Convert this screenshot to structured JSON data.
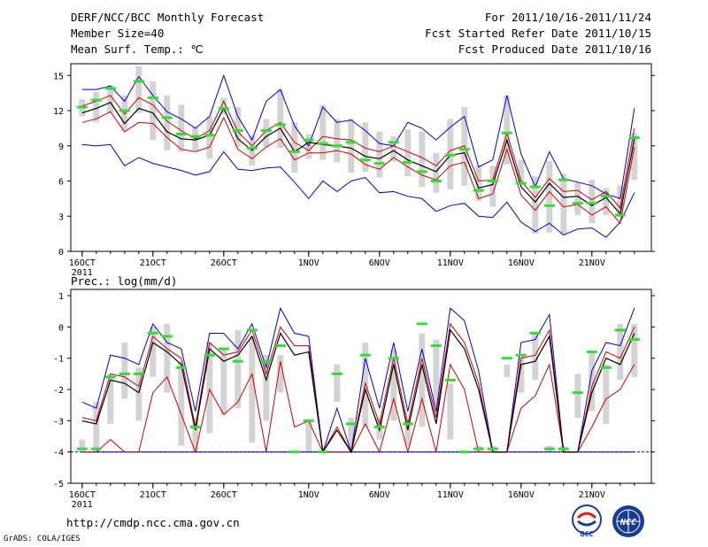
{
  "header": {
    "title": "DERF/NCC/BCC Monthly Forecast",
    "member_size": "Member Size=40",
    "variable": "Mean Surf. Temp.: ℃",
    "period": "For 2011/10/16-2011/11/24",
    "start_date": "Fcst Started Refer Date 2011/10/15",
    "produced_date": "Fcst Produced Date 2011/10/16"
  },
  "footer": {
    "url": "http://cmdp.ncc.cma.gov.cn",
    "grads": "GrADS: COLA/IGES",
    "logo_left_text": "BCC",
    "logo_right_text": "NCC"
  },
  "colors": {
    "member_bar": "#d3d3d3",
    "envelope": "#0000cc",
    "spread": "#cc0000",
    "mean": "#000000",
    "median": "#33dd33",
    "baseline": "#0000cc"
  },
  "chart_data": [
    {
      "name": "temperature",
      "type": "line",
      "title": "Mean Surf. Temp.: ℃",
      "x_tick_labels": [
        "16OCT",
        "21OCT",
        "26OCT",
        "1NOV",
        "6NOV",
        "11NOV",
        "16NOV",
        "21NOV"
      ],
      "x_tick_days": [
        0,
        5,
        10,
        16,
        21,
        26,
        31,
        36
      ],
      "x_year_label": "2011",
      "ylim": [
        0,
        16
      ],
      "y_ticks": [
        0,
        3,
        6,
        9,
        12,
        15
      ],
      "days": 40,
      "series": {
        "max": [
          13.8,
          13.8,
          14.1,
          12.8,
          14.9,
          13.3,
          11.9,
          11.3,
          10.5,
          11.5,
          15.0,
          11.5,
          9.5,
          12.8,
          13.8,
          10.7,
          9.0,
          12.3,
          11.0,
          11.2,
          10.3,
          9.2,
          9.0,
          11.0,
          10.5,
          9.5,
          10.6,
          11.5,
          7.2,
          7.8,
          13.3,
          8.3,
          5.5,
          8.5,
          6.2,
          5.9,
          5.6,
          4.9,
          4.5,
          12.2
        ],
        "hi": [
          12.4,
          12.8,
          13.3,
          11.7,
          13.1,
          12.5,
          11.1,
          10.3,
          9.6,
          10.3,
          12.8,
          10.2,
          9.0,
          10.3,
          11.0,
          9.3,
          8.6,
          9.8,
          9.6,
          9.5,
          8.8,
          8.5,
          9.0,
          8.5,
          8.0,
          7.3,
          8.6,
          9.0,
          6.0,
          6.1,
          10.1,
          6.0,
          4.6,
          6.2,
          5.1,
          5.2,
          4.4,
          5.1,
          3.7,
          10.5
        ],
        "mean": [
          11.8,
          12.2,
          12.7,
          10.9,
          12.2,
          11.8,
          10.2,
          9.6,
          9.5,
          9.9,
          12.2,
          9.6,
          8.6,
          9.8,
          10.5,
          8.5,
          9.3,
          9.1,
          9.0,
          8.8,
          8.1,
          7.9,
          8.6,
          7.8,
          7.3,
          6.8,
          8.2,
          8.4,
          5.4,
          5.7,
          9.5,
          5.5,
          4.2,
          5.8,
          4.6,
          4.7,
          3.9,
          4.6,
          3.2,
          9.6
        ],
        "lo": [
          11.0,
          11.3,
          11.9,
          10.2,
          11.0,
          10.9,
          9.7,
          8.7,
          8.5,
          8.9,
          11.4,
          8.7,
          7.9,
          8.9,
          9.6,
          7.8,
          8.4,
          8.4,
          8.6,
          8.3,
          7.4,
          7.0,
          8.0,
          7.2,
          6.5,
          6.1,
          7.3,
          7.6,
          4.5,
          4.9,
          8.7,
          4.8,
          3.5,
          5.1,
          3.8,
          4.0,
          3.1,
          3.8,
          2.4,
          8.9
        ],
        "min": [
          9.1,
          9.0,
          9.1,
          7.3,
          8.0,
          7.5,
          7.2,
          6.9,
          6.5,
          6.8,
          8.5,
          7.0,
          6.9,
          7.1,
          7.2,
          5.9,
          4.5,
          6.0,
          5.1,
          6.0,
          6.3,
          5.0,
          5.1,
          4.7,
          4.5,
          3.4,
          3.9,
          4.1,
          3.0,
          2.9,
          4.2,
          2.5,
          1.7,
          2.4,
          1.4,
          1.9,
          2.0,
          1.2,
          2.5,
          5.0
        ],
        "median": [
          12.3,
          12.9,
          13.9,
          12.0,
          14.5,
          13.1,
          11.4,
          10.0,
          9.8,
          9.9,
          12.2,
          10.3,
          8.8,
          10.3,
          10.8,
          8.5,
          9.5,
          9.2,
          9.0,
          9.3,
          7.8,
          7.5,
          9.3,
          7.6,
          6.8,
          6.0,
          8.2,
          8.7,
          5.2,
          6.0,
          10.1,
          5.8,
          5.5,
          3.9,
          6.1,
          4.1,
          4.1,
          4.7,
          3.1,
          9.7
        ],
        "bar_top": [
          13.0,
          13.6,
          14.2,
          13.3,
          15.8,
          14.5,
          13.3,
          12.5,
          10.6,
          11.5,
          13.1,
          12.3,
          9.9,
          11.3,
          13.8,
          11.0,
          10.0,
          12.5,
          11.3,
          11.3,
          11.0,
          10.2,
          9.8,
          10.4,
          10.2,
          8.4,
          11.3,
          12.3,
          7.3,
          7.3,
          13.3,
          7.8,
          6.4,
          7.7,
          6.6,
          5.9,
          6.1,
          5.4,
          5.6,
          10.1
        ],
        "bar_bot": [
          11.5,
          11.0,
          11.8,
          10.3,
          11.8,
          9.5,
          8.6,
          8.5,
          8.6,
          7.9,
          11.7,
          8.9,
          7.3,
          8.9,
          8.8,
          6.7,
          7.9,
          7.8,
          7.6,
          6.7,
          6.8,
          6.3,
          7.7,
          6.4,
          5.5,
          5.0,
          5.3,
          5.6,
          4.3,
          3.8,
          7.4,
          5.8,
          1.5,
          1.6,
          1.4,
          3.1,
          2.4,
          3.1,
          2.9,
          6.1
        ]
      }
    },
    {
      "name": "precipitation",
      "type": "line",
      "title": "Prec.: log(mm/d)",
      "x_tick_labels": [
        "16OCT",
        "21OCT",
        "26OCT",
        "1NOV",
        "6NOV",
        "11NOV",
        "16NOV",
        "21NOV"
      ],
      "x_tick_days": [
        0,
        5,
        10,
        16,
        21,
        26,
        31,
        36
      ],
      "x_year_label": "2011",
      "ylim": [
        -5,
        1.2
      ],
      "y_ticks": [
        -5,
        -4,
        -3,
        -2,
        -1,
        0,
        1
      ],
      "baseline": -4,
      "days": 40,
      "series": {
        "max": [
          -2.4,
          -2.6,
          -0.9,
          -1.0,
          -1.2,
          0.1,
          -0.5,
          -0.7,
          -2.7,
          -0.2,
          -0.2,
          -0.7,
          0.1,
          -1.3,
          0.6,
          -0.2,
          -0.3,
          -4.0,
          -2.6,
          -4.0,
          -1.0,
          -2.6,
          -0.5,
          -2.7,
          -0.7,
          -2.7,
          0.6,
          0.2,
          -1.4,
          -4.0,
          -4.0,
          -0.5,
          -0.4,
          0.4,
          -4.0,
          -4.0,
          -1.4,
          -0.5,
          -0.6,
          0.6
        ],
        "hi": [
          -2.9,
          -3.0,
          -1.5,
          -1.6,
          -1.9,
          -0.3,
          -0.7,
          -1.0,
          -3.2,
          -0.5,
          -0.9,
          -0.8,
          -0.1,
          -1.5,
          0.0,
          -0.6,
          -0.6,
          -4.0,
          -3.2,
          -4.0,
          -1.8,
          -3.1,
          -1.0,
          -3.1,
          -1.0,
          -2.9,
          0.1,
          -0.5,
          -1.8,
          -4.0,
          -4.0,
          -1.0,
          -0.9,
          -0.1,
          -4.0,
          -4.0,
          -1.9,
          -0.8,
          -1.0,
          0.0
        ],
        "mean": [
          -3.0,
          -3.1,
          -1.7,
          -1.8,
          -2.1,
          -0.5,
          -0.8,
          -1.2,
          -3.3,
          -0.7,
          -1.1,
          -0.9,
          -0.3,
          -1.7,
          -0.2,
          -0.9,
          -0.8,
          -4.0,
          -3.3,
          -4.0,
          -2.0,
          -3.3,
          -1.2,
          -3.3,
          -1.2,
          -3.1,
          -0.1,
          -0.7,
          -2.0,
          -4.0,
          -4.0,
          -1.2,
          -1.1,
          -0.3,
          -4.0,
          -4.0,
          -2.1,
          -1.0,
          -1.2,
          -0.2
        ],
        "lo": [
          -4.0,
          -4.0,
          -3.6,
          -4.0,
          -4.0,
          -2.1,
          -1.6,
          -2.8,
          -4.0,
          -2.0,
          -2.8,
          -2.4,
          -1.5,
          -4.0,
          -1.1,
          -3.2,
          -3.0,
          -4.0,
          -4.0,
          -4.0,
          -3.1,
          -4.0,
          -2.3,
          -4.0,
          -2.3,
          -4.0,
          -1.2,
          -2.0,
          -4.0,
          -4.0,
          -4.0,
          -2.6,
          -2.2,
          -1.2,
          -4.0,
          -4.0,
          -3.2,
          -2.3,
          -2.0,
          -1.2
        ],
        "min": [
          -4.0,
          -4.0,
          -4.0,
          -4.0,
          -4.0,
          -4.0,
          -4.0,
          -4.0,
          -4.0,
          -4.0,
          -4.0,
          -4.0,
          -4.0,
          -4.0,
          -4.0,
          -4.0,
          -4.0,
          -4.0,
          -4.0,
          -4.0,
          -4.0,
          -4.0,
          -4.0,
          -4.0,
          -4.0,
          -4.0,
          -4.0,
          -4.0,
          -4.0,
          -4.0,
          -4.0,
          -4.0,
          -4.0,
          -4.0,
          -4.0,
          -4.0,
          -4.0,
          -4.0,
          -4.0,
          -4.0
        ],
        "median": [
          -3.9,
          -3.9,
          -1.6,
          -1.5,
          -1.5,
          -0.2,
          -0.3,
          -1.3,
          -3.2,
          -0.9,
          -0.7,
          -1.1,
          -0.1,
          -1.1,
          -0.6,
          -4.0,
          -3.0,
          -4.0,
          -1.5,
          -3.1,
          -0.9,
          -3.2,
          -1.0,
          -3.1,
          0.1,
          -0.6,
          -1.7,
          -4.0,
          -3.9,
          -3.9,
          -1.0,
          -0.9,
          -0.2,
          -3.9,
          -3.9,
          -2.1,
          -0.8,
          -1.3,
          -0.1,
          -0.4
        ],
        "bar_top": [
          -3.6,
          -2.4,
          -1.5,
          -0.5,
          -1.3,
          0.0,
          0.1,
          -1.1,
          -2.9,
          -0.5,
          -0.7,
          -0.1,
          -0.3,
          -0.9,
          -0.9,
          -4.0,
          -3.0,
          -4.0,
          -1.2,
          -2.9,
          -0.5,
          -2.9,
          -0.7,
          -3.0,
          -0.2,
          -0.4,
          -1.8,
          -4.0,
          -3.8,
          -3.8,
          -1.2,
          -0.9,
          -0.2,
          -3.8,
          -3.8,
          -1.5,
          -0.8,
          -1.2,
          0.1,
          0.1
        ],
        "bar_bot": [
          -4.0,
          -4.0,
          -3.1,
          -2.3,
          -3.0,
          -1.6,
          -2.1,
          -3.8,
          -4.0,
          -3.4,
          -2.8,
          -2.6,
          -3.7,
          -3.0,
          -2.1,
          -4.0,
          -4.0,
          -4.0,
          -2.4,
          -4.0,
          -3.2,
          -3.6,
          -3.0,
          -3.8,
          -3.2,
          -2.5,
          -3.6,
          -4.0,
          -4.0,
          -4.0,
          -1.6,
          -2.1,
          -1.7,
          -4.0,
          -4.0,
          -2.9,
          -2.7,
          -3.1,
          -1.7,
          -1.6
        ]
      }
    }
  ]
}
